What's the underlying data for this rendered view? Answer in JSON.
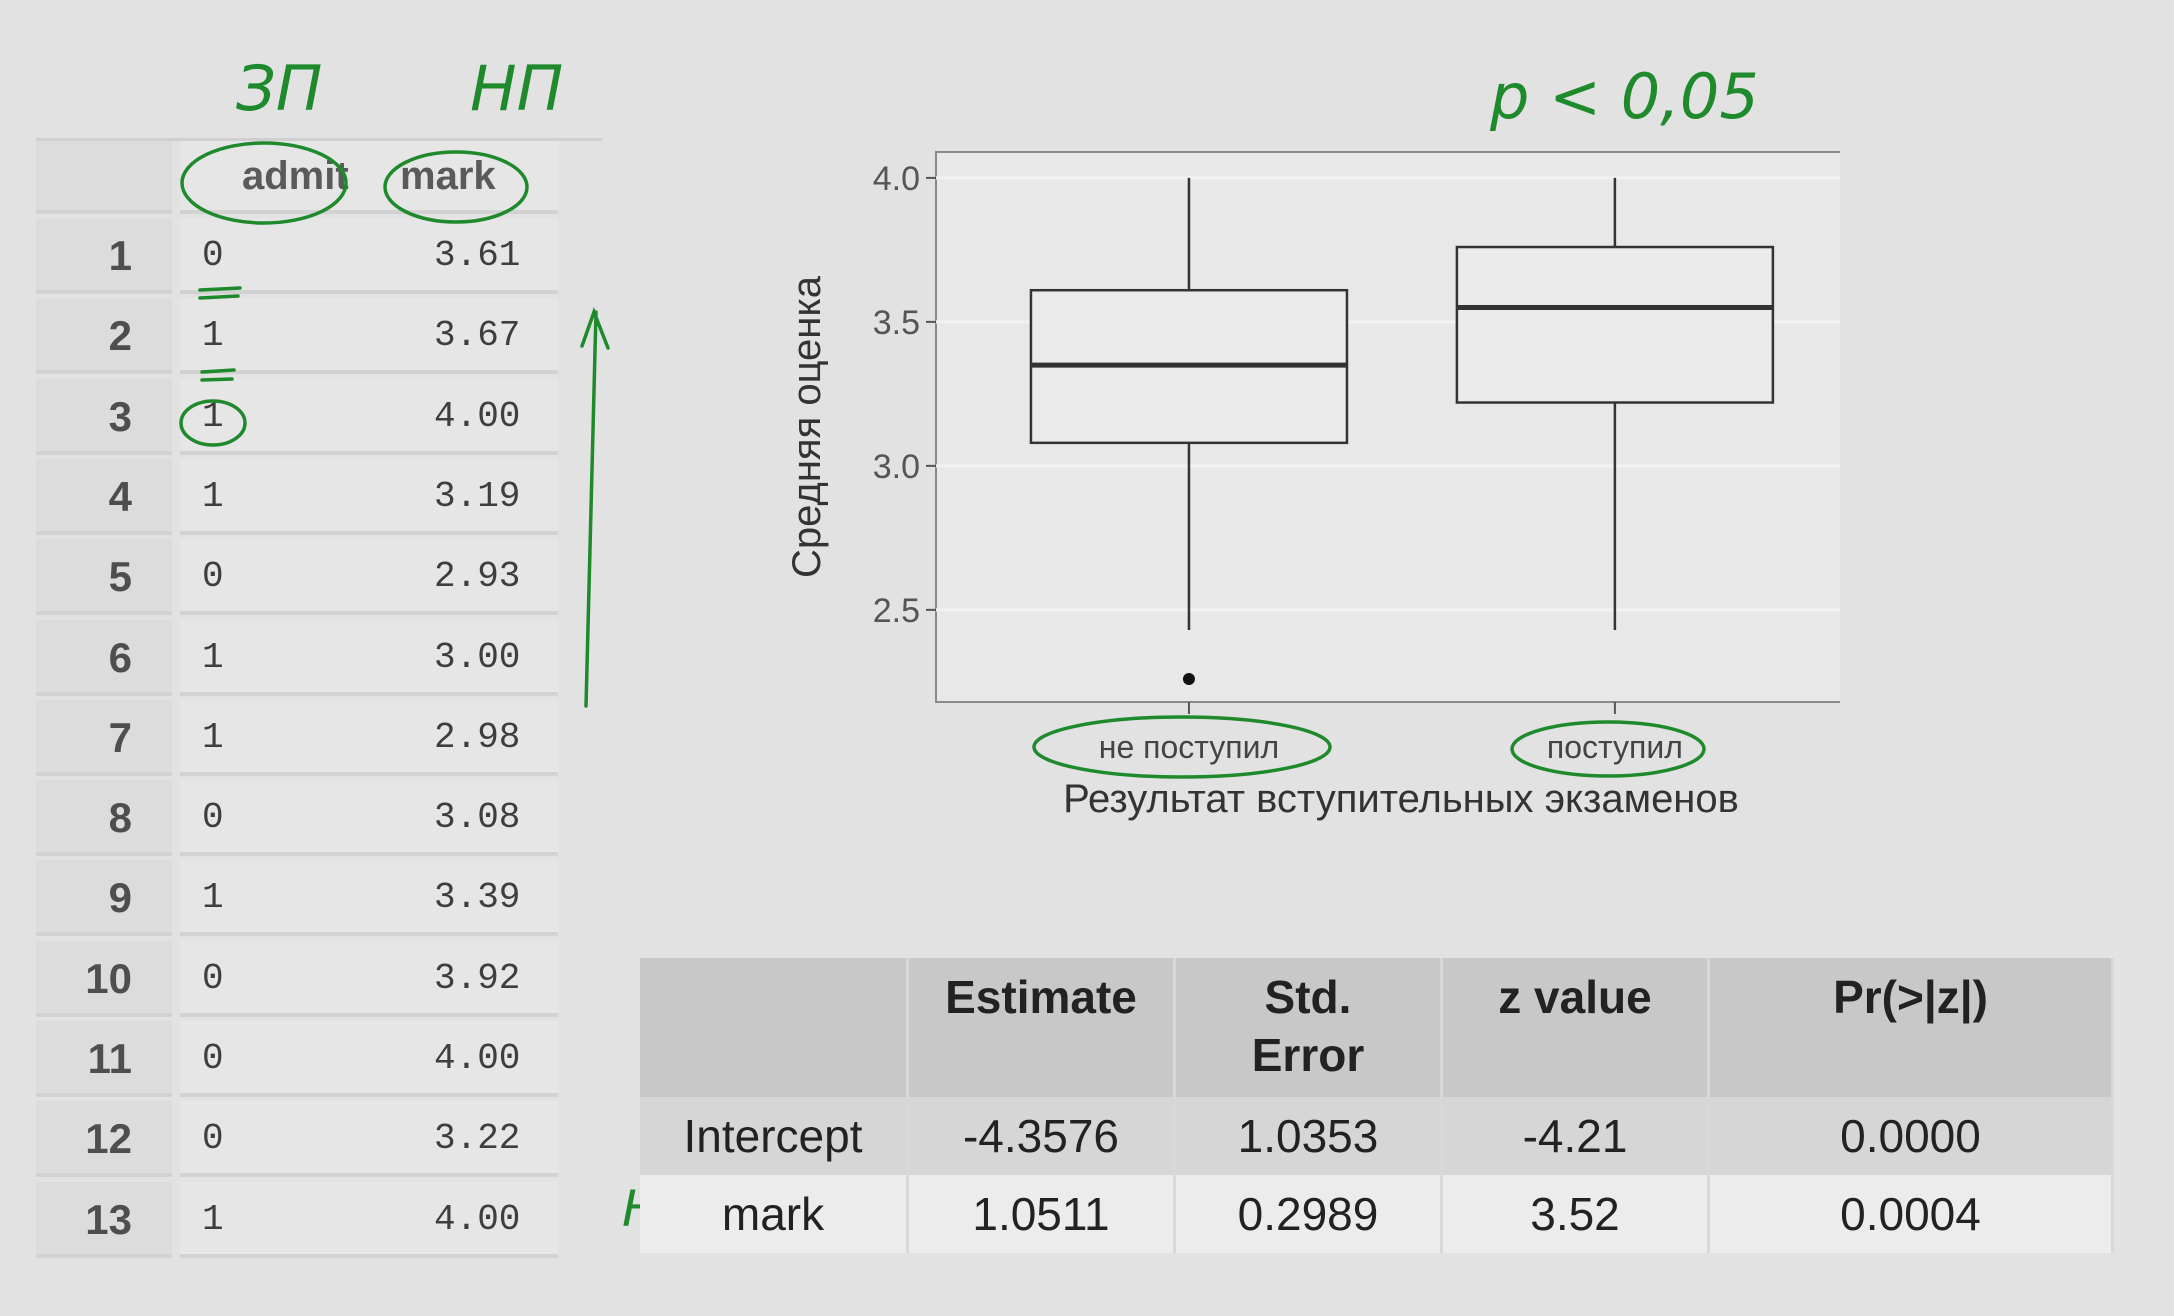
{
  "annotations": {
    "admit_note": "ЗП",
    "mark_note": "НП",
    "p_note": "p < 0,05",
    "row_note": "НП"
  },
  "data_table": {
    "headers": [
      "admit",
      "mark"
    ],
    "rows": [
      {
        "idx": "1",
        "admit": "0",
        "mark": "3.61"
      },
      {
        "idx": "2",
        "admit": "1",
        "mark": "3.67"
      },
      {
        "idx": "3",
        "admit": "1",
        "mark": "4.00"
      },
      {
        "idx": "4",
        "admit": "1",
        "mark": "3.19"
      },
      {
        "idx": "5",
        "admit": "0",
        "mark": "2.93"
      },
      {
        "idx": "6",
        "admit": "1",
        "mark": "3.00"
      },
      {
        "idx": "7",
        "admit": "1",
        "mark": "2.98"
      },
      {
        "idx": "8",
        "admit": "0",
        "mark": "3.08"
      },
      {
        "idx": "9",
        "admit": "1",
        "mark": "3.39"
      },
      {
        "idx": "10",
        "admit": "0",
        "mark": "3.92"
      },
      {
        "idx": "11",
        "admit": "0",
        "mark": "4.00"
      },
      {
        "idx": "12",
        "admit": "0",
        "mark": "3.22"
      },
      {
        "idx": "13",
        "admit": "1",
        "mark": "4.00"
      }
    ]
  },
  "boxplot": {
    "ylabel": "Средняя оценка",
    "xlabel": "Результат вступительных экзаменов",
    "yticks": [
      "2.5",
      "3.0",
      "3.5",
      "4.0"
    ],
    "ylim": [
      2.18,
      4.09
    ],
    "groups": [
      {
        "label": "не поступил",
        "min": 2.43,
        "q1": 3.08,
        "median": 3.35,
        "q3": 3.61,
        "max": 4.0,
        "outliers": [
          2.26
        ]
      },
      {
        "label": "поступил",
        "min": 2.43,
        "q1": 3.22,
        "median": 3.55,
        "q3": 3.76,
        "max": 4.0,
        "outliers": []
      }
    ]
  },
  "coef_table": {
    "headers": [
      "",
      "Estimate",
      "Std.\nError",
      "z value",
      "Pr(>|z|)"
    ],
    "rows": [
      [
        "Intercept",
        "-4.3576",
        "1.0353",
        "-4.21",
        "0.0000"
      ],
      [
        "mark",
        "1.0511",
        "0.2989",
        "3.52",
        "0.0004"
      ]
    ]
  }
}
